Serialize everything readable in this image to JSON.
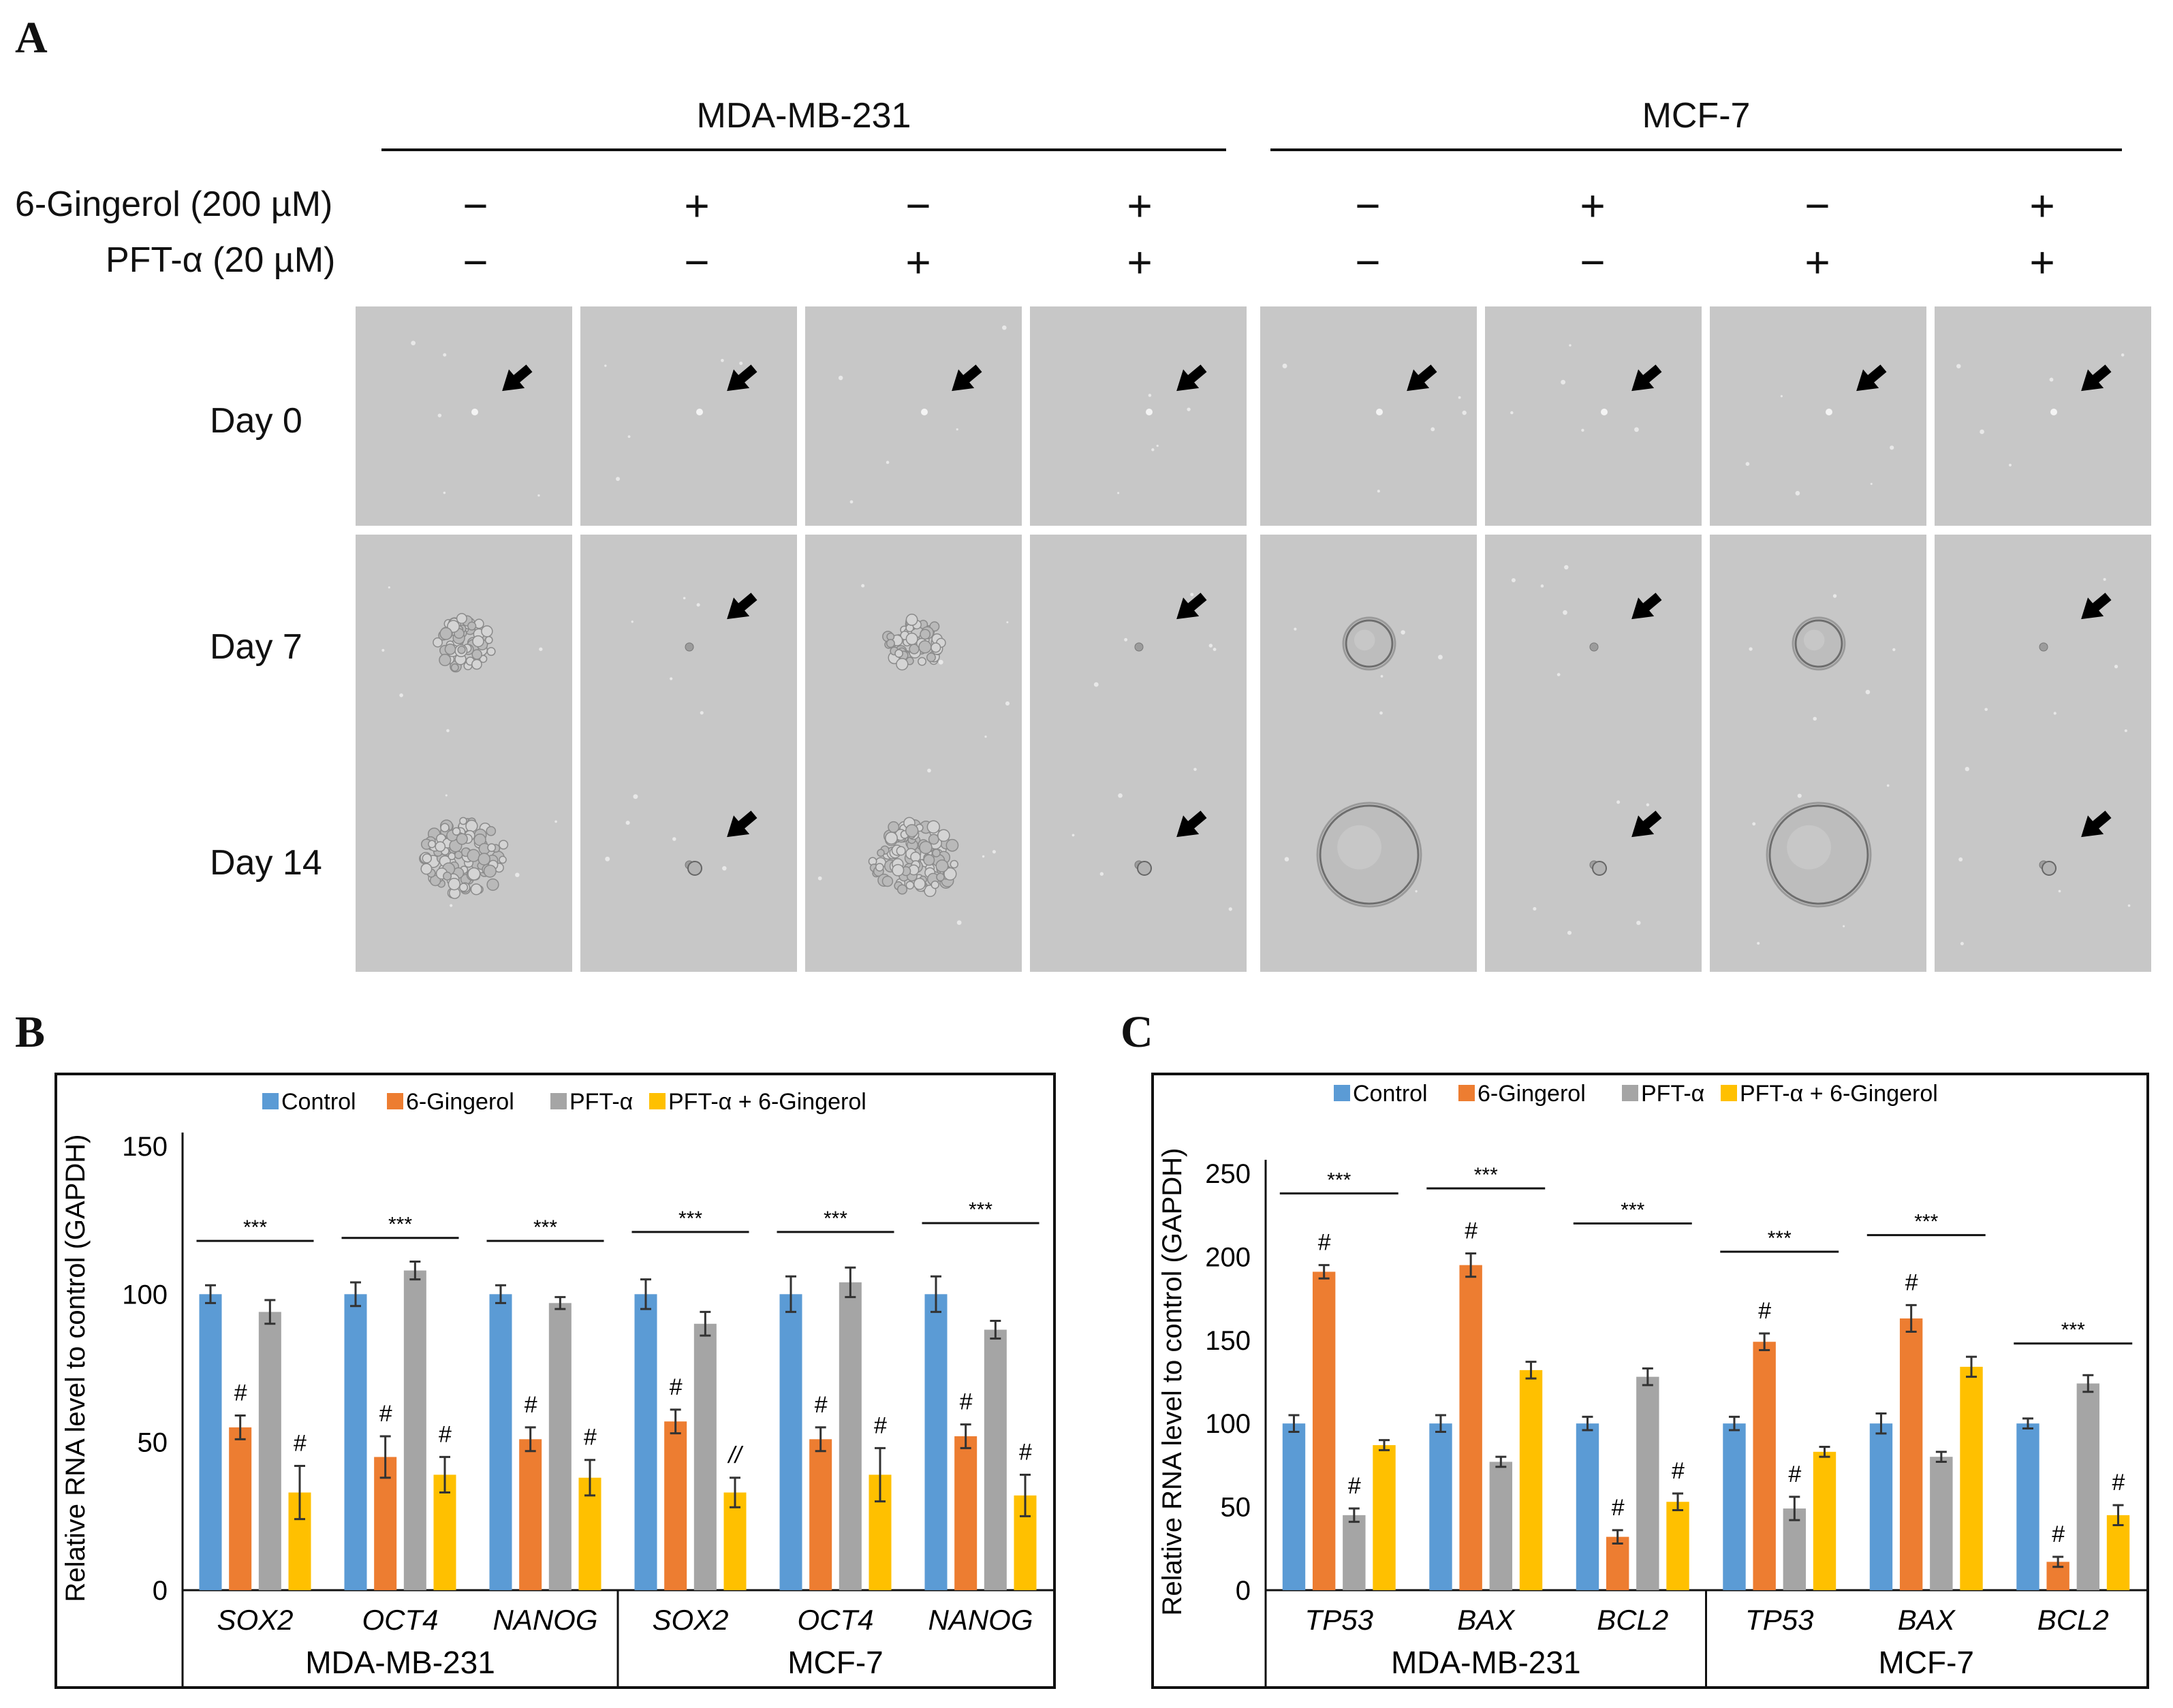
{
  "panel_a": {
    "letter": "A",
    "cell_lines": [
      "MDA-MB-231",
      "MCF-7"
    ],
    "treatment_rows": [
      {
        "label": "6-Gingerol (200 µM)",
        "signs": [
          "−",
          "+",
          "−",
          "+",
          "−",
          "+",
          "−",
          "+"
        ]
      },
      {
        "label": "PFT-α (20 µM)",
        "signs": [
          "−",
          "−",
          "+",
          "+",
          "−",
          "−",
          "+",
          "+"
        ]
      }
    ],
    "days": [
      "Day 0",
      "Day 7",
      "Day 14"
    ],
    "spheroids": {
      "day0": [
        "dot",
        "dot",
        "dot",
        "dot",
        "dot",
        "dot",
        "dot",
        "dot"
      ],
      "day7": [
        "cluster",
        "arrow-small",
        "cluster",
        "arrow-small",
        "sphere",
        "arrow-small",
        "sphere",
        "arrow-small"
      ],
      "day14": [
        "cluster-large",
        "arrow-small",
        "cluster-large",
        "arrow-small",
        "sphere-large",
        "arrow-small",
        "sphere-large",
        "arrow-small"
      ]
    }
  },
  "chart_data": [
    {
      "panel": "B",
      "type": "bar",
      "ylabel": "Relative RNA level to control (GAPDH)",
      "ylim": [
        0,
        150
      ],
      "yticks": [
        "0",
        "50",
        "100",
        "150"
      ],
      "legend": [
        "Control",
        "6-Gingerol",
        "PFT-α",
        "PFT-α + 6-Gingerol"
      ],
      "colors": [
        "#5b9bd5",
        "#ed7d31",
        "#a5a5a5",
        "#ffc000"
      ],
      "groups": [
        "MDA-MB-231",
        "MCF-7"
      ],
      "categories": [
        "SOX2",
        "OCT4",
        "NANOG",
        "SOX2",
        "OCT4",
        "NANOG"
      ],
      "series": [
        {
          "name": "Control",
          "values": [
            100,
            100,
            100,
            100,
            100,
            100
          ],
          "errors": [
            3,
            4,
            3,
            5,
            6,
            6
          ]
        },
        {
          "name": "6-Gingerol",
          "values": [
            55,
            45,
            51,
            57,
            51,
            52
          ],
          "errors": [
            4,
            7,
            4,
            4,
            4,
            4
          ]
        },
        {
          "name": "PFT-α",
          "values": [
            94,
            108,
            97,
            90,
            104,
            88
          ],
          "errors": [
            4,
            3,
            2,
            4,
            5,
            3
          ]
        },
        {
          "name": "PFT-α + 6-Gingerol",
          "values": [
            33,
            39,
            38,
            33,
            39,
            32
          ],
          "errors": [
            9,
            6,
            6,
            5,
            9,
            7
          ]
        }
      ],
      "sig_top": "***",
      "sig_marks": [
        [
          "",
          "#",
          "",
          "#"
        ],
        [
          "",
          "#",
          "",
          "#"
        ],
        [
          "",
          "#",
          "",
          "#"
        ],
        [
          "",
          "#",
          "",
          "//"
        ],
        [
          "",
          "#",
          "",
          "#"
        ],
        [
          "",
          "#",
          "",
          "#"
        ]
      ],
      "sig_line_heights": [
        118,
        119,
        118,
        121,
        121,
        124
      ]
    },
    {
      "panel": "C",
      "type": "bar",
      "ylabel": "Relative RNA level to control (GAPDH)",
      "ylim": [
        0,
        250
      ],
      "yticks": [
        "0",
        "50",
        "100",
        "150",
        "200",
        "250"
      ],
      "legend": [
        "Control",
        "6-Gingerol",
        "PFT-α",
        "PFT-α + 6-Gingerol"
      ],
      "colors": [
        "#5b9bd5",
        "#ed7d31",
        "#a5a5a5",
        "#ffc000"
      ],
      "groups": [
        "MDA-MB-231",
        "MCF-7"
      ],
      "categories": [
        "TP53",
        "BAX",
        "BCL2",
        "TP53",
        "BAX",
        "BCL2"
      ],
      "series": [
        {
          "name": "Control",
          "values": [
            100,
            100,
            100,
            100,
            100,
            100
          ],
          "errors": [
            5,
            5,
            4,
            4,
            6,
            3
          ]
        },
        {
          "name": "6-Gingerol",
          "values": [
            191,
            195,
            32,
            149,
            163,
            17
          ],
          "errors": [
            4,
            7,
            4,
            5,
            8,
            3
          ]
        },
        {
          "name": "PFT-α",
          "values": [
            45,
            77,
            128,
            49,
            80,
            124
          ],
          "errors": [
            4,
            3,
            5,
            7,
            3,
            5
          ]
        },
        {
          "name": "PFT-α + 6-Gingerol",
          "values": [
            87,
            132,
            53,
            83,
            134,
            45
          ],
          "errors": [
            3,
            5,
            5,
            3,
            6,
            6
          ]
        }
      ],
      "sig_top": "***",
      "sig_marks": [
        [
          "",
          "#",
          "#",
          ""
        ],
        [
          "",
          "#",
          "",
          ""
        ],
        [
          "",
          "#",
          "",
          "#"
        ],
        [
          "",
          "#",
          "#",
          ""
        ],
        [
          "",
          "#",
          "",
          ""
        ],
        [
          "",
          "#",
          "",
          "#"
        ]
      ],
      "sig_line_heights": [
        238,
        241,
        220,
        203,
        213,
        148
      ]
    }
  ],
  "panel_b": {
    "letter": "B"
  },
  "panel_c": {
    "letter": "C"
  }
}
